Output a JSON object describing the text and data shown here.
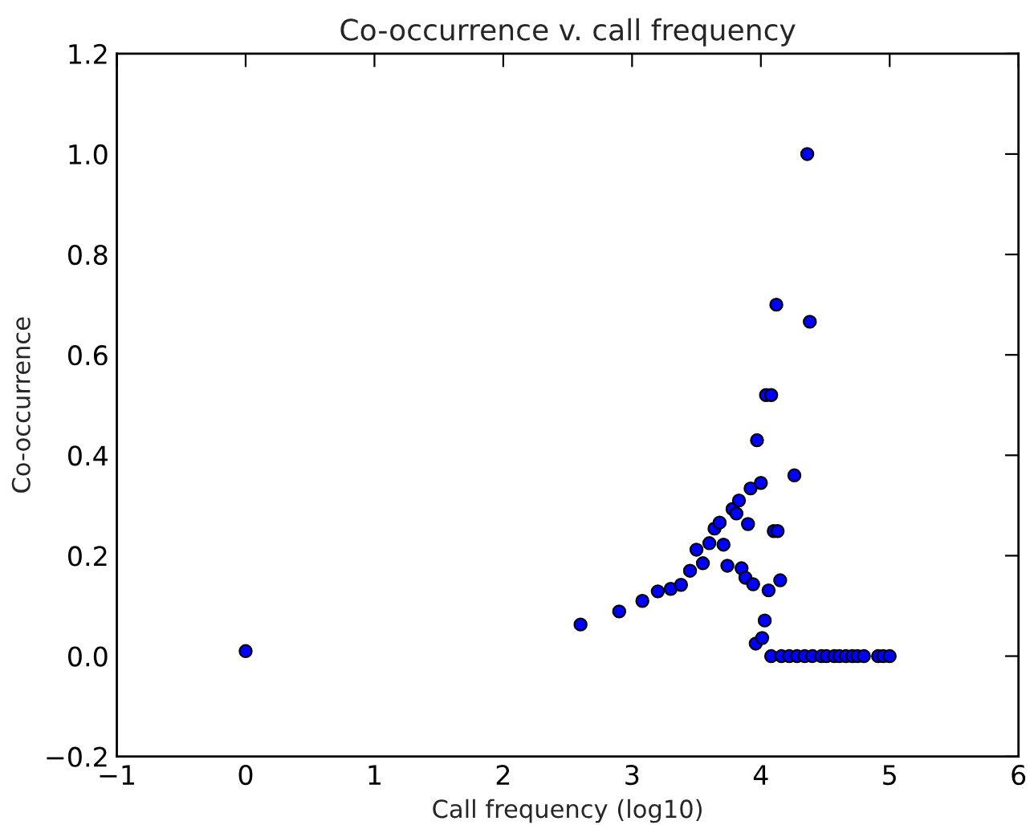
{
  "chart_data": {
    "type": "scatter",
    "title": "Co-occurrence v. call frequency",
    "xlabel": "Call frequency (log10)",
    "ylabel": "Co-occurrence",
    "series": [
      {
        "color": "#0000ff",
        "x": [
          0.0,
          2.6,
          2.9,
          3.08,
          3.2,
          3.3,
          3.38,
          3.45,
          3.5,
          3.55,
          3.6,
          3.64,
          3.68,
          3.71,
          3.74,
          3.78,
          3.81,
          3.83,
          3.85,
          3.88,
          3.9,
          3.92,
          3.94,
          3.96,
          3.97,
          4.0,
          4.01,
          4.03,
          4.04,
          4.06,
          4.08,
          4.1,
          4.12,
          4.13,
          4.15,
          4.26,
          4.36,
          4.38,
          4.08,
          4.16,
          4.22,
          4.28,
          4.34,
          4.4,
          4.47,
          4.51,
          4.57,
          4.61,
          4.66,
          4.71,
          4.75,
          4.8,
          4.91,
          4.95,
          5.0
        ],
        "values": [
          0.01,
          0.063,
          0.089,
          0.11,
          0.129,
          0.134,
          0.142,
          0.17,
          0.212,
          0.185,
          0.225,
          0.254,
          0.266,
          0.222,
          0.18,
          0.293,
          0.284,
          0.31,
          0.175,
          0.156,
          0.263,
          0.334,
          0.143,
          0.025,
          0.43,
          0.345,
          0.036,
          0.071,
          0.52,
          0.131,
          0.52,
          0.249,
          0.7,
          0.249,
          0.151,
          0.36,
          1.0,
          0.666,
          0.0,
          0.0,
          0.0,
          0.0,
          0.0,
          0.0,
          0.0,
          0.0,
          0.0,
          0.0,
          0.0,
          0.0,
          0.0,
          0.0,
          0.0,
          0.0,
          0.0
        ]
      }
    ],
    "xlim": [
      -1,
      6
    ],
    "xticks": [
      {
        "value": -1,
        "label": "−1"
      },
      0,
      1,
      2,
      3,
      4,
      5,
      6
    ],
    "ylim": [
      -0.2,
      1.2
    ],
    "yticks": [
      {
        "value": -0.2,
        "label": "−0.2"
      },
      {
        "value": 0,
        "label": "0.0"
      },
      0.2,
      0.4,
      0.6,
      0.8,
      {
        "value": 1,
        "label": "1.0"
      },
      1.2
    ],
    "grid": false,
    "marker": "circle"
  }
}
